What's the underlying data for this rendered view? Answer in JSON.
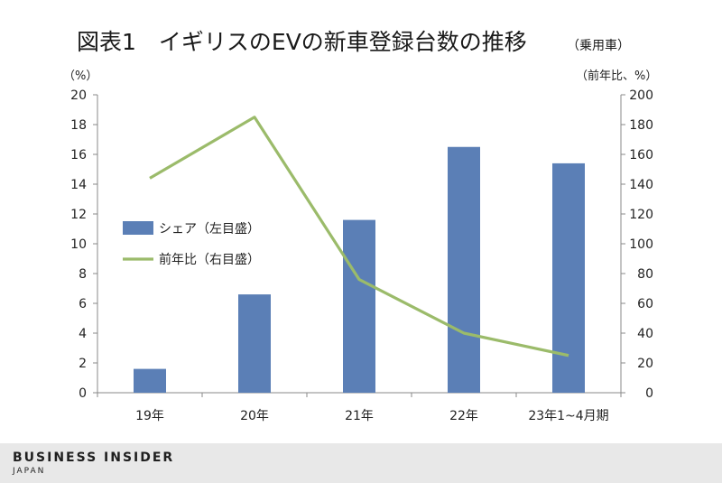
{
  "chart_data": {
    "type": "bar",
    "title": "図表1　イギリスのEVの新車登録台数の推移",
    "subtitle": "（乗用車）",
    "left_unit": "（%）",
    "right_unit": "（前年比、%）",
    "categories": [
      "19年",
      "20年",
      "21年",
      "22年",
      "23年1~4月期"
    ],
    "series": [
      {
        "name": "シェア（左目盛）",
        "kind": "bar",
        "axis": "left",
        "color": "#5b7fb6",
        "values": [
          1.6,
          6.6,
          11.6,
          16.5,
          15.4
        ]
      },
      {
        "name": "前年比（右目盛）",
        "kind": "line",
        "axis": "right",
        "color": "#9bbb6a",
        "values": [
          144,
          185,
          76,
          40,
          25
        ]
      }
    ],
    "ylim_left": [
      0,
      20
    ],
    "ylim_right": [
      0,
      200
    ],
    "yticks_left": [
      0,
      2,
      4,
      6,
      8,
      10,
      12,
      14,
      16,
      18,
      20
    ],
    "yticks_right": [
      0,
      20,
      40,
      60,
      80,
      100,
      120,
      140,
      160,
      180,
      200
    ],
    "grid": false,
    "legend_position": "middle-left"
  },
  "footer": {
    "brand": "BUSINESS INSIDER",
    "brand_sub": "JAPAN"
  }
}
